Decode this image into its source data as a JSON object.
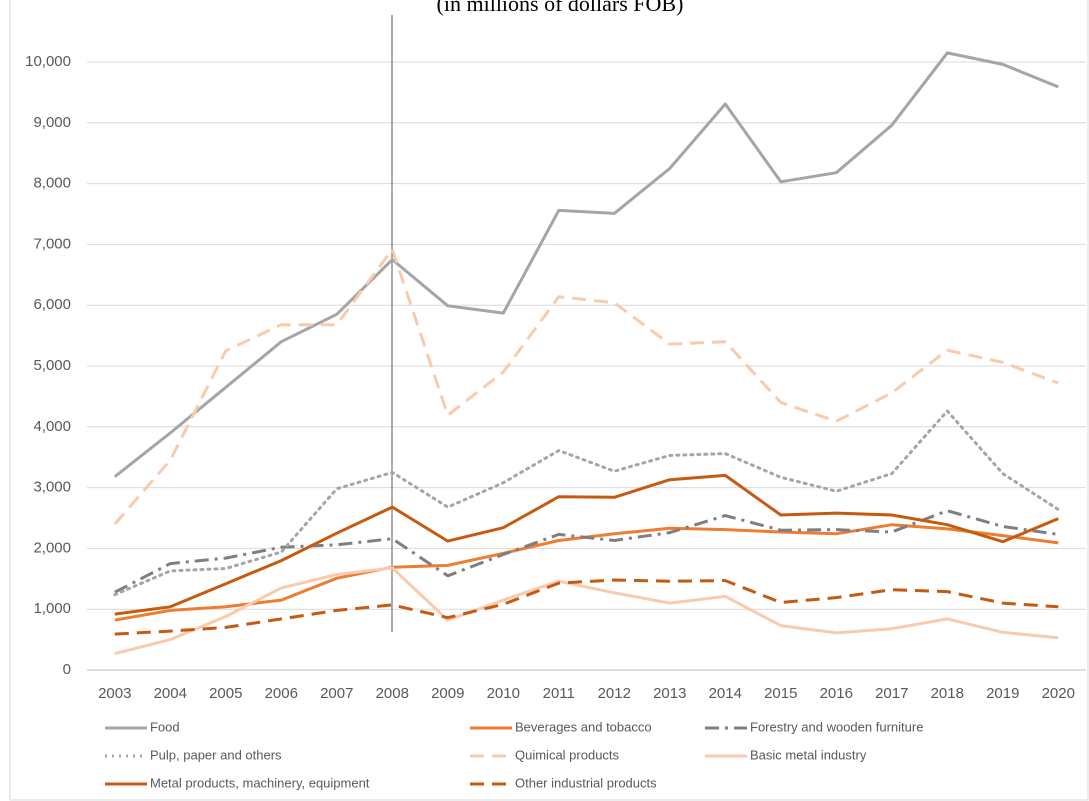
{
  "chart_data": {
    "type": "line",
    "subtitle": "(in millions of dollars FOB)",
    "categories": [
      "2003",
      "2004",
      "2005",
      "2006",
      "2007",
      "2008",
      "2009",
      "2010",
      "2011",
      "2012",
      "2013",
      "2014",
      "2015",
      "2016",
      "2017",
      "2018",
      "2019",
      "2020"
    ],
    "series": [
      {
        "name": "Food",
        "color": "#a5a5a5",
        "dash": "solid",
        "values": [
          3180,
          3900,
          4650,
          5400,
          5850,
          6750,
          5990,
          5870,
          7560,
          7510,
          8250,
          9310,
          8030,
          8180,
          8960,
          10150,
          9960,
          9590
        ]
      },
      {
        "name": "Beverages and tobacco",
        "color": "#ed7d31",
        "dash": "solid",
        "values": [
          820,
          980,
          1040,
          1150,
          1510,
          1690,
          1720,
          1920,
          2130,
          2240,
          2330,
          2310,
          2270,
          2240,
          2390,
          2320,
          2210,
          2090
        ]
      },
      {
        "name": "Forestry and wooden furniture",
        "color": "#7f7f7f",
        "dash": "dashdot",
        "values": [
          1280,
          1750,
          1840,
          2020,
          2060,
          2160,
          1550,
          1900,
          2230,
          2130,
          2260,
          2540,
          2300,
          2310,
          2270,
          2620,
          2360,
          2230
        ]
      },
      {
        "name": "Pulp, paper and others",
        "color": "#a5a5a5",
        "dash": "dot",
        "values": [
          1240,
          1630,
          1670,
          1940,
          2980,
          3250,
          2680,
          3080,
          3610,
          3270,
          3530,
          3560,
          3170,
          2940,
          3230,
          4260,
          3230,
          2640
        ]
      },
      {
        "name": "Quimical products",
        "color": "#f8cbad",
        "dash": "dash",
        "values": [
          2400,
          3450,
          5250,
          5680,
          5680,
          6920,
          4190,
          4900,
          6140,
          6040,
          5360,
          5400,
          4400,
          4090,
          4560,
          5260,
          5060,
          4720
        ]
      },
      {
        "name": "Basic metal industry",
        "color": "#f8cbad",
        "dash": "solid",
        "values": [
          270,
          500,
          880,
          1350,
          1570,
          1680,
          820,
          1150,
          1460,
          1270,
          1100,
          1210,
          730,
          610,
          680,
          840,
          620,
          530
        ]
      },
      {
        "name": "Metal products, machinery, equipment",
        "color": "#c55a11",
        "dash": "solid",
        "values": [
          920,
          1040,
          1420,
          1800,
          2250,
          2680,
          2120,
          2340,
          2850,
          2840,
          3130,
          3200,
          2550,
          2580,
          2550,
          2390,
          2110,
          2490
        ]
      },
      {
        "name": "Other industrial products",
        "color": "#c55a11",
        "dash": "dash",
        "values": [
          590,
          640,
          700,
          840,
          980,
          1070,
          860,
          1080,
          1430,
          1480,
          1460,
          1470,
          1110,
          1190,
          1320,
          1290,
          1100,
          1040
        ]
      }
    ],
    "ylim": [
      0,
      10500
    ],
    "yticks": [
      0,
      {
        "value": 1000,
        "label": "1,000"
      },
      {
        "value": 2000,
        "label": "2,000"
      },
      {
        "value": 3000,
        "label": "3,000"
      },
      {
        "value": 4000,
        "label": "4,000"
      },
      {
        "value": 5000,
        "label": "5,000"
      },
      {
        "value": 6000,
        "label": "6,000"
      },
      {
        "value": 7000,
        "label": "7,000"
      },
      {
        "value": 8000,
        "label": "8,000"
      },
      {
        "value": 9000,
        "label": "9,000"
      },
      {
        "value": 10000,
        "label": "10,000"
      }
    ],
    "grid": true
  }
}
